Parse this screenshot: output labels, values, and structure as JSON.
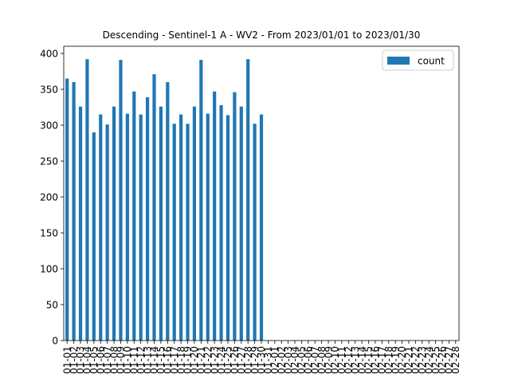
{
  "chart_data": {
    "type": "bar",
    "title": "Descending - Sentinel-1 A - WV2 - From 2023/01/01 to 2023/01/30",
    "xlabel": "",
    "ylabel": "",
    "ylim": [
      0,
      410
    ],
    "yticks": [
      0,
      50,
      100,
      150,
      200,
      250,
      300,
      350,
      400
    ],
    "grid": false,
    "legend": {
      "placement": "top-right",
      "entries": [
        "count"
      ]
    },
    "bar_color": "#1f77b4",
    "categories": [
      "01-01",
      "01-02",
      "01-03",
      "01-04",
      "01-05",
      "01-06",
      "01-07",
      "01-08",
      "01-09",
      "01-10",
      "01-11",
      "01-12",
      "01-13",
      "01-14",
      "01-15",
      "01-16",
      "01-17",
      "01-18",
      "01-19",
      "01-20",
      "01-21",
      "01-22",
      "01-23",
      "01-24",
      "01-25",
      "01-26",
      "01-27",
      "01-28",
      "01-29",
      "01-30",
      "01-31",
      "02-01",
      "02-02",
      "02-03",
      "02-04",
      "02-05",
      "02-06",
      "02-07",
      "02-08",
      "02-09",
      "02-10",
      "02-11",
      "02-12",
      "02-13",
      "02-14",
      "02-15",
      "02-16",
      "02-17",
      "02-18",
      "02-19",
      "02-20",
      "02-21",
      "02-22",
      "02-23",
      "02-24",
      "02-25",
      "02-26",
      "02-27",
      "02-28"
    ],
    "series": [
      {
        "name": "count",
        "values": [
          365,
          360,
          326,
          392,
          290,
          315,
          301,
          326,
          391,
          316,
          347,
          315,
          339,
          371,
          326,
          360,
          302,
          315,
          302,
          326,
          391,
          316,
          347,
          328,
          314,
          346,
          326,
          392,
          302,
          315,
          0,
          0,
          0,
          0,
          0,
          0,
          0,
          0,
          0,
          0,
          0,
          0,
          0,
          0,
          0,
          0,
          0,
          0,
          0,
          0,
          0,
          0,
          0,
          0,
          0,
          0,
          0,
          0,
          0
        ]
      }
    ]
  }
}
